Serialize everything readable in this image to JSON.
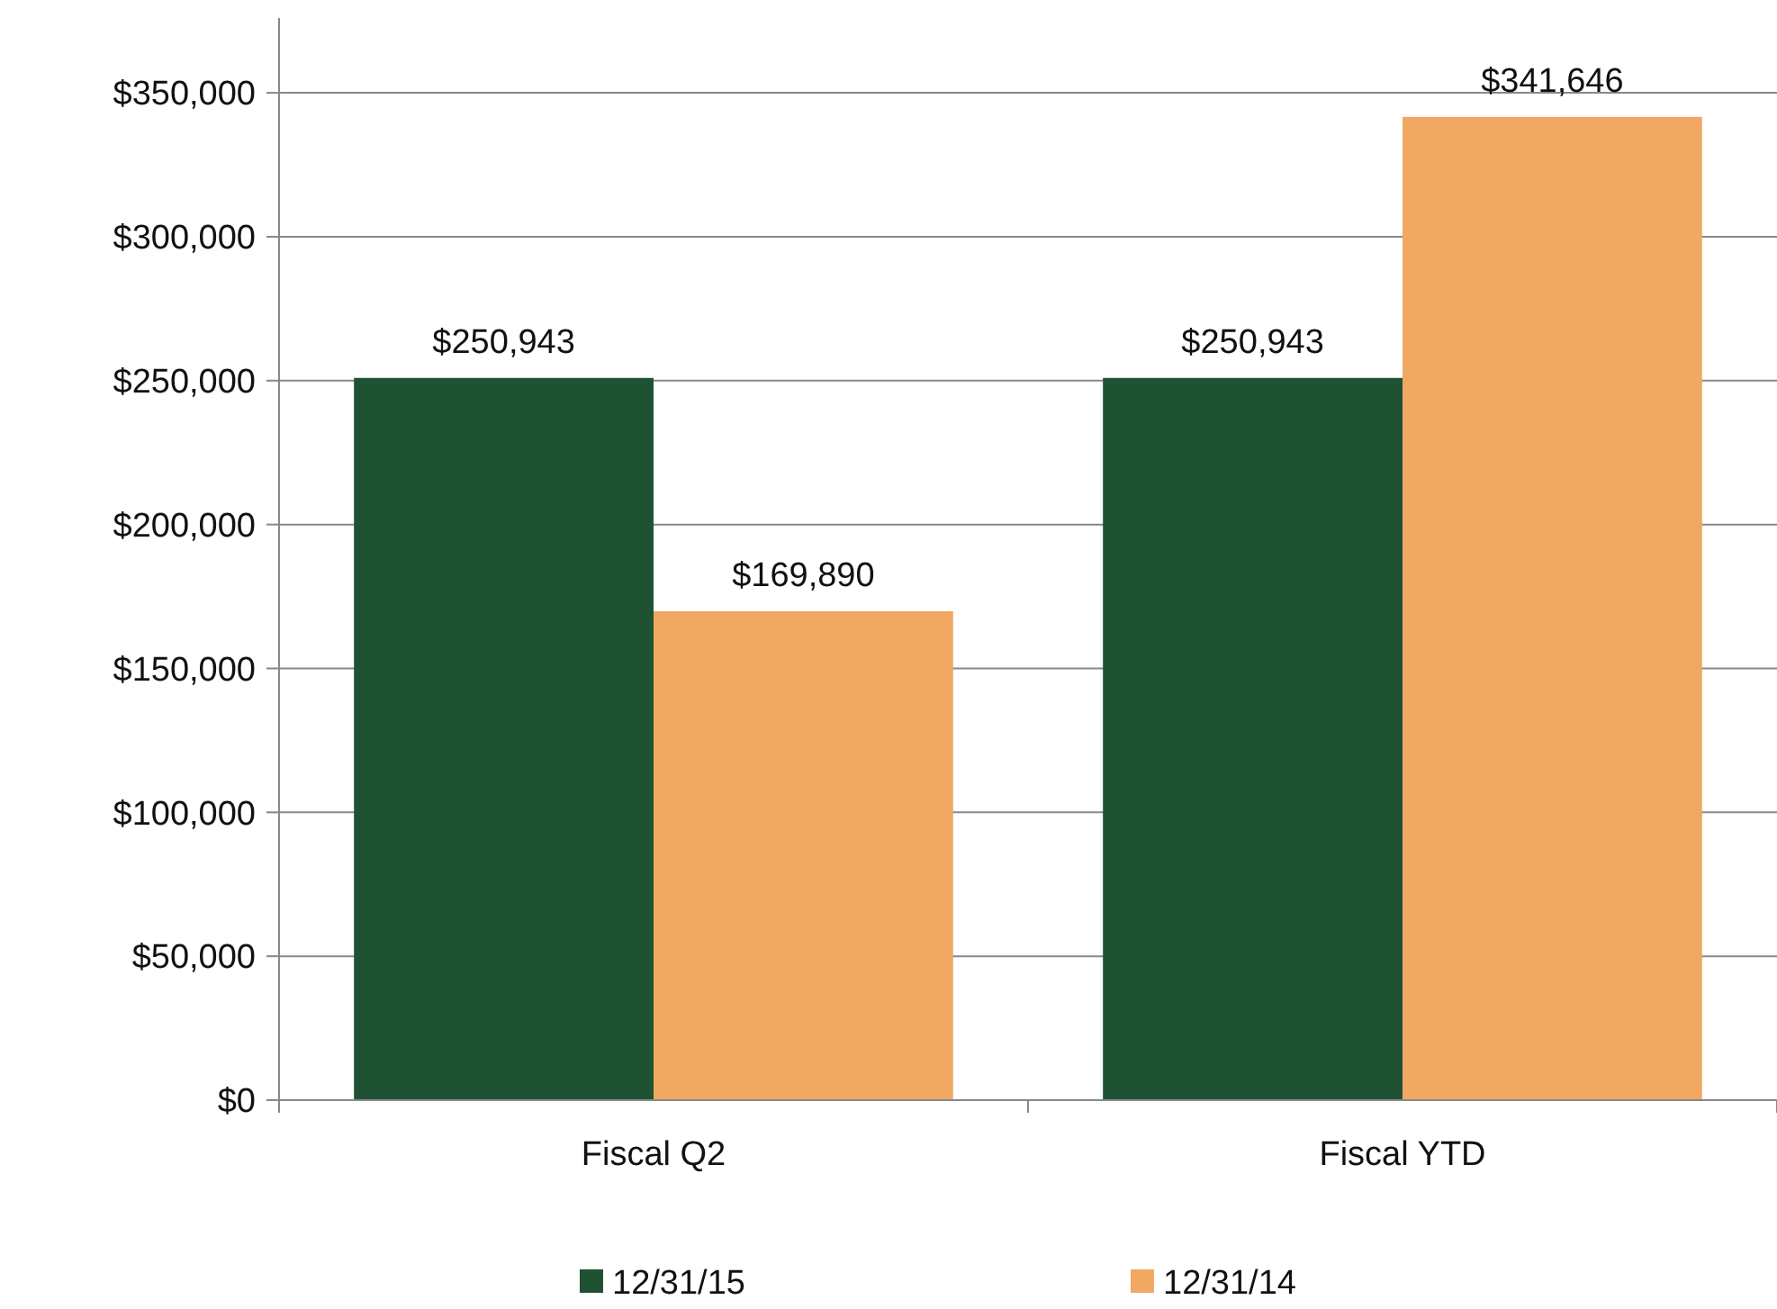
{
  "chart_data": {
    "type": "bar",
    "categories": [
      "Fiscal Q2",
      "Fiscal YTD"
    ],
    "series": [
      {
        "name": "12/31/15",
        "color": "#1f5233",
        "values": [
          250943,
          250943
        ],
        "value_labels": [
          "$250,943",
          "$250,943"
        ]
      },
      {
        "name": "12/31/14",
        "color": "#f0a862",
        "values": [
          169890,
          341646
        ],
        "value_labels": [
          "$169,890",
          "$341,646"
        ]
      }
    ],
    "ylim": [
      0,
      376000
    ],
    "yticks": [
      {
        "value": 0,
        "label": "$0"
      },
      {
        "value": 50000,
        "label": "$50,000"
      },
      {
        "value": 100000,
        "label": "$100,000"
      },
      {
        "value": 150000,
        "label": "$150,000"
      },
      {
        "value": 200000,
        "label": "$200,000"
      },
      {
        "value": 250000,
        "label": "$250,000"
      },
      {
        "value": 300000,
        "label": "$300,000"
      },
      {
        "value": 350000,
        "label": "$350,000"
      }
    ],
    "grid": "y",
    "legend": "bottom"
  }
}
